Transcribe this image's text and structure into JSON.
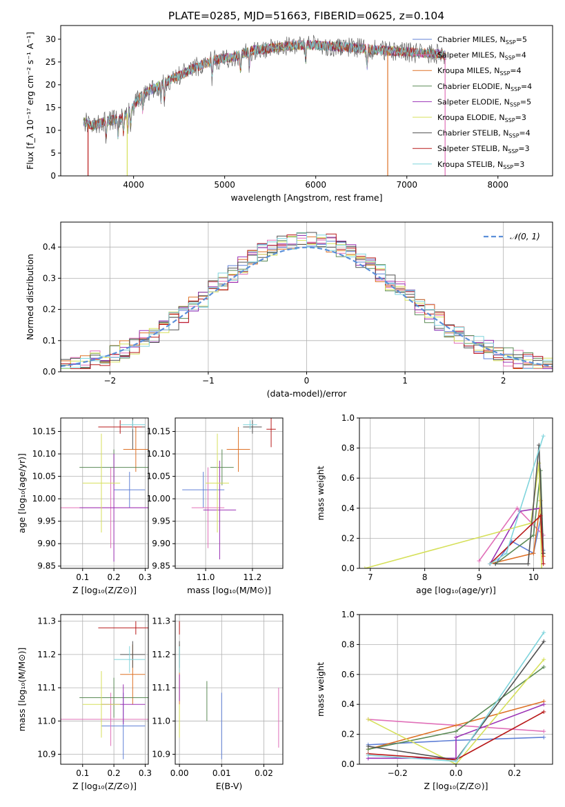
{
  "figure": {
    "title": "PLATE=0285, MJD=51663, FIBERID=0625, z=0.104"
  },
  "colors": {
    "Chabrier MILES": "#5f7fd6",
    "Salpeter MILES": "#e06fb8",
    "Kroupa MILES": "#dd7025",
    "Chabrier ELODIE": "#5a8a55",
    "Salpeter ELODIE": "#9a30b4",
    "Kroupa ELODIE": "#d6e05a",
    "Chabrier STELIB": "#505050",
    "Salpeter STELIB": "#b81818",
    "Kroupa STELIB": "#7fd4dc"
  },
  "chart_data": [
    {
      "id": "spectrum",
      "type": "line",
      "xlabel": "wavelength [Angstrom, rest frame]",
      "ylabel": "Flux [f_λ 10⁻¹⁷ erg cm⁻² s⁻¹ A⁻¹]",
      "xlim": [
        3200,
        8600
      ],
      "ylim": [
        0,
        33
      ],
      "xticks": [
        4000,
        5000,
        6000,
        7000,
        8000
      ],
      "yticks": [
        0,
        5,
        10,
        15,
        20,
        25,
        30
      ],
      "grid": false,
      "legend_position": "right",
      "legend": [
        {
          "series": "Chabrier MILES",
          "label": "Chabrier MILES, N",
          "sub": "SSP",
          "suffix": "=5"
        },
        {
          "series": "Salpeter MILES",
          "label": "Salpeter MILES, N",
          "sub": "SSP",
          "suffix": "=4"
        },
        {
          "series": "Kroupa MILES",
          "label": "Kroupa MILES, N",
          "sub": "SSP",
          "suffix": "=4"
        },
        {
          "series": "Chabrier ELODIE",
          "label": "Chabrier ELODIE, N",
          "sub": "SSP",
          "suffix": "=4"
        },
        {
          "series": "Salpeter ELODIE",
          "label": "Salpeter ELODIE, N",
          "sub": "SSP",
          "suffix": "=5"
        },
        {
          "series": "Kroupa ELODIE",
          "label": "Kroupa ELODIE, N",
          "sub": "SSP",
          "suffix": "=3"
        },
        {
          "series": "Chabrier STELIB",
          "label": "Chabrier STELIB, N",
          "sub": "SSP",
          "suffix": "=4"
        },
        {
          "series": "Salpeter STELIB",
          "label": "Salpeter STELIB, N",
          "sub": "SSP",
          "suffix": "=3"
        },
        {
          "series": "Kroupa STELIB",
          "label": "Kroupa STELIB, N",
          "sub": "SSP",
          "suffix": "=3"
        }
      ],
      "continuum": [
        [
          3450,
          12
        ],
        [
          3550,
          11
        ],
        [
          3700,
          12
        ],
        [
          3850,
          12.5
        ],
        [
          3950,
          14
        ],
        [
          4100,
          18
        ],
        [
          4300,
          20
        ],
        [
          4500,
          22
        ],
        [
          4700,
          24
        ],
        [
          4900,
          25.5
        ],
        [
          5100,
          26
        ],
        [
          5300,
          27.5
        ],
        [
          5500,
          28
        ],
        [
          5700,
          28.5
        ],
        [
          5900,
          28.8
        ],
        [
          6100,
          28.5
        ],
        [
          6300,
          28.3
        ],
        [
          6500,
          28
        ],
        [
          6700,
          27.6
        ],
        [
          6900,
          27.3
        ],
        [
          7100,
          27
        ],
        [
          7300,
          26.8
        ],
        [
          7430,
          26.5
        ]
      ],
      "data_range": [
        3450,
        7430
      ],
      "spikes": [
        {
          "x": 3500,
          "y_min": 0,
          "series": "Salpeter STELIB"
        },
        {
          "x": 3930,
          "y_min": 0,
          "series": "Kroupa ELODIE"
        },
        {
          "x": 6790,
          "y_min": 0,
          "series": "Kroupa MILES"
        },
        {
          "x": 7420,
          "y_min": 0,
          "series": "Salpeter MILES"
        }
      ]
    },
    {
      "id": "residuals",
      "type": "histogram",
      "xlabel": "(data-model)/error",
      "ylabel": "Normed distribution",
      "xlim": [
        -2.5,
        2.5
      ],
      "ylim": [
        0,
        0.48
      ],
      "xticks": [
        -2,
        -1,
        0,
        1,
        2
      ],
      "yticks": [
        0.0,
        0.1,
        0.2,
        0.3,
        0.4
      ],
      "grid": true,
      "legend_position": "top-right",
      "reference": {
        "label": "𝒩(0, 1)",
        "mean": 0,
        "sigma": 1,
        "color": "#5b8fd9"
      },
      "bin_width": 0.1
    },
    {
      "id": "age_vs_Z",
      "type": "errorbar",
      "xlabel": "Z [log₁₀(Z/Z⊙)]",
      "ylabel": "age  [log₁₀(age/yr)]",
      "xlim": [
        0.03,
        0.31
      ],
      "ylim": [
        9.845,
        10.18
      ],
      "xticks": [
        0.1,
        0.2,
        0.3
      ],
      "yticks": [
        9.85,
        9.9,
        9.95,
        10.0,
        10.05,
        10.1,
        10.15
      ],
      "grid": true,
      "points": [
        {
          "series": "Chabrier MILES",
          "x": 0.25,
          "xerr": 0.05,
          "y": 10.02,
          "yerr": 0.04
        },
        {
          "series": "Salpeter MILES",
          "x": 0.19,
          "xerr": 0.16,
          "y": 9.98,
          "yerr": 0.09
        },
        {
          "series": "Kroupa MILES",
          "x": 0.27,
          "xerr": 0.04,
          "y": 10.11,
          "yerr": 0.05
        },
        {
          "series": "Chabrier ELODIE",
          "x": 0.2,
          "xerr": 0.11,
          "y": 10.07,
          "yerr": 0.04
        },
        {
          "series": "Salpeter ELODIE",
          "x": 0.2,
          "xerr": 0.11,
          "y": 9.98,
          "yerr": 0.12
        },
        {
          "series": "Kroupa ELODIE",
          "x": 0.16,
          "xerr": 0.06,
          "y": 10.035,
          "yerr": 0.11
        },
        {
          "series": "Chabrier STELIB",
          "x": 0.26,
          "xerr": 0.04,
          "y": 10.16,
          "yerr": 0.05
        },
        {
          "series": "Salpeter STELIB",
          "x": 0.22,
          "xerr": 0.07,
          "y": 10.16,
          "yerr": 0.015
        },
        {
          "series": "Kroupa STELIB",
          "x": 0.26,
          "xerr": 0.04,
          "y": 10.165,
          "yerr": 0.01
        }
      ]
    },
    {
      "id": "age_vs_mass",
      "type": "errorbar",
      "xlabel": "mass [log₁₀(M/M⊙)]",
      "ylabel": "",
      "xlim": [
        10.87,
        11.33
      ],
      "ylim": [
        9.845,
        10.18
      ],
      "xticks": [
        11.0,
        11.2
      ],
      "yticks": [
        9.85,
        9.9,
        9.95,
        10.0,
        10.05,
        10.1,
        10.15
      ],
      "grid": true,
      "points": [
        {
          "series": "Chabrier MILES",
          "x": 10.99,
          "xerr": 0.09,
          "y": 10.02,
          "yerr": 0.04
        },
        {
          "series": "Salpeter MILES",
          "x": 11.01,
          "xerr": 0.07,
          "y": 9.98,
          "yerr": 0.09
        },
        {
          "series": "Kroupa MILES",
          "x": 11.14,
          "xerr": 0.05,
          "y": 10.11,
          "yerr": 0.05
        },
        {
          "series": "Chabrier ELODIE",
          "x": 11.07,
          "xerr": 0.05,
          "y": 10.07,
          "yerr": 0.04
        },
        {
          "series": "Salpeter ELODIE",
          "x": 11.06,
          "xerr": 0.07,
          "y": 9.975,
          "yerr": 0.11
        },
        {
          "series": "Kroupa ELODIE",
          "x": 11.05,
          "xerr": 0.05,
          "y": 10.035,
          "yerr": 0.11
        },
        {
          "series": "Chabrier STELIB",
          "x": 11.2,
          "xerr": 0.04,
          "y": 10.16,
          "yerr": 0.015
        },
        {
          "series": "Salpeter STELIB",
          "x": 11.28,
          "xerr": 0.02,
          "y": 10.155,
          "yerr": 0.04
        },
        {
          "series": "Kroupa STELIB",
          "x": 11.19,
          "xerr": 0.03,
          "y": 10.165,
          "yerr": 0.01
        }
      ]
    },
    {
      "id": "weight_vs_age",
      "type": "line",
      "xlabel": "age  [log₁₀(age/yr)]",
      "ylabel": "mass weight",
      "xlim": [
        6.8,
        10.35
      ],
      "ylim": [
        0,
        1.0
      ],
      "xticks": [
        7,
        8,
        9,
        10
      ],
      "yticks": [
        0.0,
        0.2,
        0.4,
        0.6,
        0.8,
        1.0
      ],
      "grid": true,
      "series": [
        {
          "name": "Chabrier MILES",
          "x": [
            9.3,
            9.6,
            10.0,
            10.13,
            10.18
          ],
          "y": [
            0.03,
            0.18,
            0.1,
            0.33,
            0.12
          ]
        },
        {
          "name": "Salpeter MILES",
          "x": [
            9.0,
            9.7,
            10.18
          ],
          "y": [
            0.05,
            0.4,
            0.22
          ]
        },
        {
          "name": "Kroupa MILES",
          "x": [
            9.2,
            10.0,
            10.13,
            10.18
          ],
          "y": [
            0.03,
            0.1,
            0.45,
            0.08
          ]
        },
        {
          "name": "Chabrier ELODIE",
          "x": [
            9.3,
            10.0,
            10.13,
            10.18
          ],
          "y": [
            0.03,
            0.22,
            0.65,
            0.1
          ]
        },
        {
          "name": "Salpeter ELODIE",
          "x": [
            9.2,
            9.75,
            10.13
          ],
          "y": [
            0.03,
            0.38,
            0.4
          ]
        },
        {
          "name": "Kroupa ELODIE",
          "x": [
            6.9,
            9.95,
            10.1,
            10.15
          ],
          "y": [
            0.0,
            0.3,
            0.7,
            0.0
          ]
        },
        {
          "name": "Chabrier STELIB",
          "x": [
            9.3,
            9.9,
            10.1,
            10.18
          ],
          "y": [
            0.03,
            0.03,
            0.82,
            0.1
          ]
        },
        {
          "name": "Salpeter STELIB",
          "x": [
            9.2,
            10.13,
            10.18
          ],
          "y": [
            0.03,
            0.35,
            0.03
          ]
        },
        {
          "name": "Kroupa STELIB",
          "x": [
            9.2,
            9.5,
            10.18
          ],
          "y": [
            0.03,
            0.1,
            0.88
          ]
        }
      ]
    },
    {
      "id": "mass_vs_Z",
      "type": "errorbar",
      "xlabel": "Z [log₁₀(Z/Z⊙)]",
      "ylabel": "mass [log₁₀(M/M⊙)]",
      "xlim": [
        0.03,
        0.31
      ],
      "ylim": [
        10.87,
        11.32
      ],
      "xticks": [
        0.1,
        0.2,
        0.3
      ],
      "yticks": [
        10.9,
        11.0,
        11.1,
        11.2,
        11.3
      ],
      "grid": true,
      "points": [
        {
          "series": "Chabrier MILES",
          "x": 0.23,
          "xerr": 0.07,
          "y": 10.985,
          "yerr": 0.1
        },
        {
          "series": "Salpeter MILES",
          "x": 0.19,
          "xerr": 0.16,
          "y": 11.005,
          "yerr": 0.08
        },
        {
          "series": "Kroupa MILES",
          "x": 0.26,
          "xerr": 0.04,
          "y": 11.14,
          "yerr": 0.09
        },
        {
          "series": "Chabrier ELODIE",
          "x": 0.2,
          "xerr": 0.11,
          "y": 11.07,
          "yerr": 0.06
        },
        {
          "series": "Salpeter ELODIE",
          "x": 0.23,
          "xerr": 0.07,
          "y": 11.05,
          "yerr": 0.06
        },
        {
          "series": "Kroupa ELODIE",
          "x": 0.16,
          "xerr": 0.06,
          "y": 11.05,
          "yerr": 0.1
        },
        {
          "series": "Chabrier STELIB",
          "x": 0.26,
          "xerr": 0.04,
          "y": 11.2,
          "yerr": 0.04
        },
        {
          "series": "Salpeter STELIB",
          "x": 0.27,
          "xerr": 0.12,
          "y": 11.28,
          "yerr": 0.02
        },
        {
          "series": "Kroupa STELIB",
          "x": 0.25,
          "xerr": 0.05,
          "y": 11.185,
          "yerr": 0.04
        }
      ]
    },
    {
      "id": "mass_vs_ebv",
      "type": "errorbar",
      "xlabel": "E(B-V)",
      "ylabel": "",
      "xlim": [
        -0.001,
        0.0245
      ],
      "ylim": [
        10.87,
        11.32
      ],
      "xticks": [
        0.0,
        0.01,
        0.02
      ],
      "yticks": [
        10.9,
        11.0,
        11.1,
        11.2,
        11.3
      ],
      "grid": true,
      "points": [
        {
          "series": "Chabrier MILES",
          "x": 0.01,
          "xerr": 0,
          "y": 10.985,
          "yerr": 0.1
        },
        {
          "series": "Salpeter MILES",
          "x": 0.0235,
          "xerr": 0,
          "y": 11.01,
          "yerr": 0.09
        },
        {
          "series": "Kroupa MILES",
          "x": 0.0,
          "xerr": 0,
          "y": 11.14,
          "yerr": 0.09
        },
        {
          "series": "Chabrier ELODIE",
          "x": 0.0065,
          "xerr": 0,
          "y": 11.06,
          "yerr": 0.06
        },
        {
          "series": "Salpeter ELODIE",
          "x": 0.0,
          "xerr": 0,
          "y": 11.1,
          "yerr": 0.04
        },
        {
          "series": "Kroupa ELODIE",
          "x": 0.0,
          "xerr": 0,
          "y": 11.0,
          "yerr": 0.05
        },
        {
          "series": "Chabrier STELIB",
          "x": 0.0,
          "xerr": 0,
          "y": 11.2,
          "yerr": 0.04
        },
        {
          "series": "Salpeter STELIB",
          "x": 0.0,
          "xerr": 0,
          "y": 11.28,
          "yerr": 0.02
        },
        {
          "series": "Kroupa STELIB",
          "x": 0.0,
          "xerr": 0,
          "y": 11.185,
          "yerr": 0.04
        }
      ]
    },
    {
      "id": "weight_vs_Z",
      "type": "line",
      "xlabel": "Z [log₁₀(Z/Z⊙)]",
      "ylabel": "mass weight",
      "xlim": [
        -0.33,
        0.33
      ],
      "ylim": [
        0,
        1.0
      ],
      "xticks": [
        -0.2,
        0.0,
        0.2
      ],
      "yticks": [
        0.0,
        0.2,
        0.4,
        0.6,
        0.8,
        1.0
      ],
      "grid": true,
      "series": [
        {
          "name": "Chabrier MILES",
          "x": [
            -0.3,
            0.0,
            0.3
          ],
          "y": [
            0.13,
            0.16,
            0.18
          ]
        },
        {
          "name": "Salpeter MILES",
          "x": [
            -0.3,
            0.0,
            0.3
          ],
          "y": [
            0.3,
            0.26,
            0.22
          ]
        },
        {
          "name": "Kroupa MILES",
          "x": [
            -0.3,
            0.0,
            0.3
          ],
          "y": [
            0.1,
            0.26,
            0.42
          ]
        },
        {
          "name": "Chabrier ELODIE",
          "x": [
            -0.3,
            0.0,
            0.3
          ],
          "y": [
            0.1,
            0.22,
            0.65
          ]
        },
        {
          "name": "Salpeter ELODIE",
          "x": [
            -0.3,
            0.0,
            0.0,
            0.3
          ],
          "y": [
            0.04,
            0.04,
            0.18,
            0.4
          ]
        },
        {
          "name": "Kroupa ELODIE",
          "x": [
            -0.3,
            0.0,
            0.3
          ],
          "y": [
            0.3,
            0.0,
            0.7
          ]
        },
        {
          "name": "Chabrier STELIB",
          "x": [
            -0.3,
            0.0,
            0.3
          ],
          "y": [
            0.12,
            0.03,
            0.82
          ]
        },
        {
          "name": "Salpeter STELIB",
          "x": [
            -0.3,
            0.0,
            0.3
          ],
          "y": [
            0.07,
            0.03,
            0.35
          ]
        },
        {
          "name": "Kroupa STELIB",
          "x": [
            -0.3,
            0.0,
            0.3
          ],
          "y": [
            0.06,
            0.02,
            0.88
          ]
        }
      ]
    }
  ]
}
